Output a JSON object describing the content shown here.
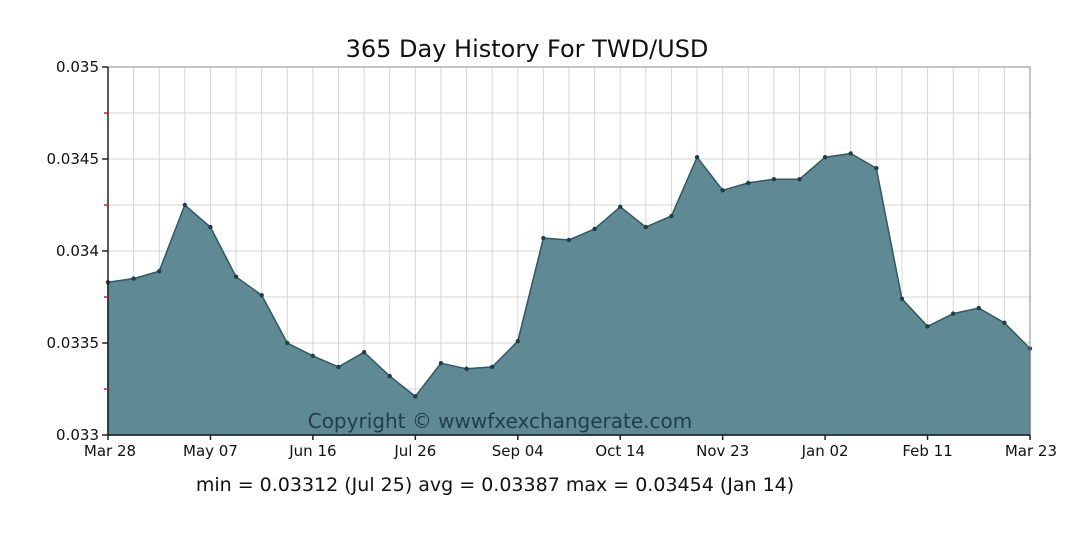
{
  "chart_data": {
    "type": "area",
    "title": "365 Day History For TWD/USD",
    "xlabel": "",
    "ylabel": "",
    "ylim": [
      0.033,
      0.035
    ],
    "yticks": [
      {
        "value": 0.033,
        "label": "0.033"
      },
      {
        "value": 0.0335,
        "label": "0.0335"
      },
      {
        "value": 0.034,
        "label": "0.034"
      },
      {
        "value": 0.0345,
        "label": "0.0345"
      },
      {
        "value": 0.035,
        "label": "0.035"
      }
    ],
    "xticks": [
      "Mar 28",
      "May 07",
      "Jun 16",
      "Jul 26",
      "Sep 04",
      "Oct 14",
      "Nov 23",
      "Jan 02",
      "Feb 11",
      "Mar 23"
    ],
    "grid": true,
    "fill_color": "#5f8a93",
    "line_color": "#2f5962",
    "values": [
      0.03383,
      0.03385,
      0.03389,
      0.03425,
      0.03413,
      0.03386,
      0.03376,
      0.0335,
      0.03343,
      0.03337,
      0.03345,
      0.03332,
      0.03321,
      0.03339,
      0.03336,
      0.03337,
      0.03351,
      0.03407,
      0.03406,
      0.03412,
      0.03424,
      0.03413,
      0.03419,
      0.03451,
      0.03433,
      0.03437,
      0.03439,
      0.03439,
      0.03451,
      0.03453,
      0.03445,
      0.03374,
      0.03359,
      0.03366,
      0.03369,
      0.03361,
      0.03347
    ],
    "watermark": "Copyright © wwwfxexchangerate.com",
    "stats_line": "min = 0.03312 (Jul 25)  avg = 0.03387 max = 0.03454 (Jan 14)"
  }
}
